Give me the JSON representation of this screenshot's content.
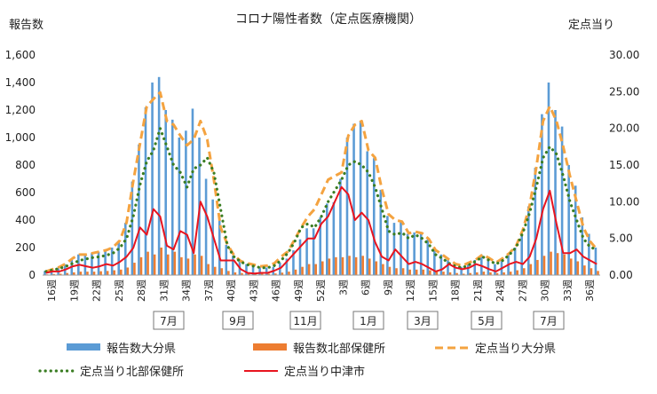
{
  "chart_data": {
    "type": "bar",
    "title": "コロナ陽性者数（定点医療機関）",
    "ylabel": "報告数",
    "y2label": "定点当り",
    "ylim": [
      0,
      1600
    ],
    "y2lim": [
      0,
      30
    ],
    "y_ticks": [
      "0",
      "200",
      "400",
      "600",
      "800",
      "1,000",
      "1,200",
      "1,400",
      "1,600"
    ],
    "y2_ticks": [
      "0.00",
      "5.00",
      "10.00",
      "15.00",
      "20.00",
      "25.00",
      "30.00"
    ],
    "grid": false,
    "legend_position": "bottom",
    "x_tick_labels": [
      "16週",
      "19週",
      "22週",
      "25週",
      "28週",
      "31週",
      "34週",
      "37週",
      "40週",
      "43週",
      "46週",
      "49週",
      "52週",
      "3週",
      "6週",
      "9週",
      "12週",
      "15週",
      "18週",
      "21週",
      "24週",
      "27週",
      "30週",
      "33週",
      "36週"
    ],
    "month_labels": [
      "7月",
      "9月",
      "11月",
      "1月",
      "3月",
      "5月",
      "7月"
    ],
    "bar_series": [
      {
        "name": "報告数大分県",
        "color": "#5b9bd5",
        "values": [
          30,
          40,
          55,
          80,
          120,
          150,
          150,
          160,
          170,
          180,
          200,
          250,
          380,
          680,
          950,
          1220,
          1400,
          1440,
          1200,
          1130,
          1000,
          1050,
          1210,
          1000,
          700,
          550,
          400,
          220,
          140,
          100,
          80,
          70,
          60,
          55,
          60,
          90,
          120,
          180,
          260,
          340,
          340,
          420,
          520,
          530,
          700,
          1000,
          1100,
          1120,
          900,
          850,
          620,
          430,
          380,
          390,
          300,
          310,
          300,
          260,
          180,
          150,
          110,
          80,
          60,
          90,
          110,
          150,
          120,
          80,
          100,
          150,
          200,
          300,
          500,
          780,
          1170,
          1400,
          1200,
          1080,
          800,
          650,
          420,
          300,
          200
        ]
      },
      {
        "name": "報告数北部保健所",
        "color": "#ed7d31",
        "values": [
          5,
          8,
          10,
          15,
          20,
          25,
          25,
          25,
          28,
          30,
          35,
          40,
          55,
          90,
          130,
          170,
          150,
          200,
          150,
          170,
          130,
          120,
          150,
          140,
          80,
          60,
          50,
          30,
          20,
          15,
          12,
          10,
          10,
          10,
          12,
          18,
          25,
          40,
          60,
          80,
          80,
          100,
          120,
          130,
          130,
          140,
          130,
          140,
          120,
          100,
          80,
          60,
          50,
          50,
          40,
          40,
          40,
          35,
          30,
          25,
          20,
          15,
          10,
          15,
          20,
          25,
          20,
          15,
          20,
          25,
          35,
          50,
          80,
          110,
          140,
          170,
          160,
          150,
          120,
          100,
          70,
          50,
          30
        ]
      }
    ],
    "line_series": [
      {
        "name": "定点当り大分県",
        "color": "#f4a340",
        "style": "dashed",
        "values": [
          0.5,
          0.8,
          1.1,
          1.6,
          2.3,
          2.8,
          2.8,
          3.0,
          3.2,
          3.4,
          3.8,
          4.7,
          7.2,
          12.8,
          17.9,
          23.0,
          24.0,
          24.9,
          21.0,
          20.5,
          19.0,
          17.7,
          18.5,
          21.0,
          18.5,
          13.0,
          6.5,
          4.2,
          2.7,
          1.9,
          1.6,
          1.4,
          1.2,
          1.3,
          1.6,
          2.5,
          3.2,
          4.8,
          6.5,
          8.0,
          9.0,
          11.0,
          13.0,
          13.5,
          14.0,
          19.0,
          20.5,
          21.0,
          17.0,
          16.0,
          11.7,
          8.3,
          7.5,
          7.3,
          5.7,
          5.9,
          5.7,
          4.9,
          3.4,
          2.8,
          2.1,
          1.5,
          1.3,
          1.7,
          2.1,
          2.8,
          2.3,
          1.7,
          2.3,
          3.0,
          4.0,
          6.2,
          9.5,
          14.7,
          21.0,
          23.0,
          21.0,
          17.5,
          13.5,
          10.0,
          6.5,
          4.6,
          3.5
        ]
      },
      {
        "name": "定点当り北部保健所",
        "color": "#3a7d22",
        "style": "dotted",
        "values": [
          0.5,
          0.7,
          0.9,
          1.2,
          1.6,
          2.0,
          2.2,
          2.4,
          2.5,
          2.7,
          3.0,
          3.7,
          5.0,
          8.0,
          12.3,
          15.5,
          17.0,
          20.0,
          17.5,
          15.0,
          14.0,
          12.0,
          14.5,
          15.0,
          16.0,
          14.0,
          9.0,
          4.0,
          2.5,
          1.8,
          1.4,
          1.2,
          1.0,
          1.0,
          1.3,
          2.0,
          3.0,
          4.5,
          6.5,
          7.0,
          6.5,
          8.0,
          10.0,
          11.5,
          13.0,
          15.0,
          15.5,
          15.0,
          14.0,
          12.0,
          9.0,
          6.0,
          5.5,
          5.8,
          5.0,
          5.5,
          5.0,
          4.2,
          2.8,
          2.3,
          1.6,
          1.2,
          1.0,
          1.4,
          1.9,
          2.5,
          2.0,
          1.5,
          2.0,
          2.8,
          3.8,
          5.8,
          8.5,
          12.0,
          16.0,
          17.5,
          16.5,
          13.5,
          10.0,
          7.5,
          5.0,
          3.8,
          3.5
        ]
      },
      {
        "name": "定点当り中津市",
        "color": "#e8141f",
        "style": "solid",
        "values": [
          0.3,
          0.5,
          0.5,
          0.8,
          1.2,
          1.4,
          1.2,
          1.0,
          1.2,
          1.5,
          1.3,
          1.8,
          2.5,
          3.7,
          6.5,
          5.5,
          9.0,
          8.0,
          4.0,
          3.5,
          6.0,
          5.5,
          3.0,
          10.0,
          8.0,
          5.0,
          2.0,
          2.0,
          2.0,
          0.8,
          0.3,
          0.2,
          0.3,
          0.3,
          0.6,
          1.0,
          2.0,
          3.0,
          4.0,
          5.0,
          5.0,
          7.0,
          8.0,
          10.0,
          12.0,
          11.0,
          7.5,
          8.5,
          7.5,
          4.5,
          2.5,
          2.0,
          3.5,
          2.5,
          1.5,
          1.8,
          1.5,
          1.0,
          0.5,
          0.8,
          1.5,
          1.0,
          0.8,
          1.0,
          1.5,
          1.2,
          0.8,
          0.5,
          1.0,
          1.5,
          1.8,
          1.5,
          2.5,
          5.0,
          9.0,
          11.5,
          7.0,
          3.0,
          3.0,
          3.5,
          2.5,
          2.0,
          1.5
        ]
      }
    ]
  }
}
